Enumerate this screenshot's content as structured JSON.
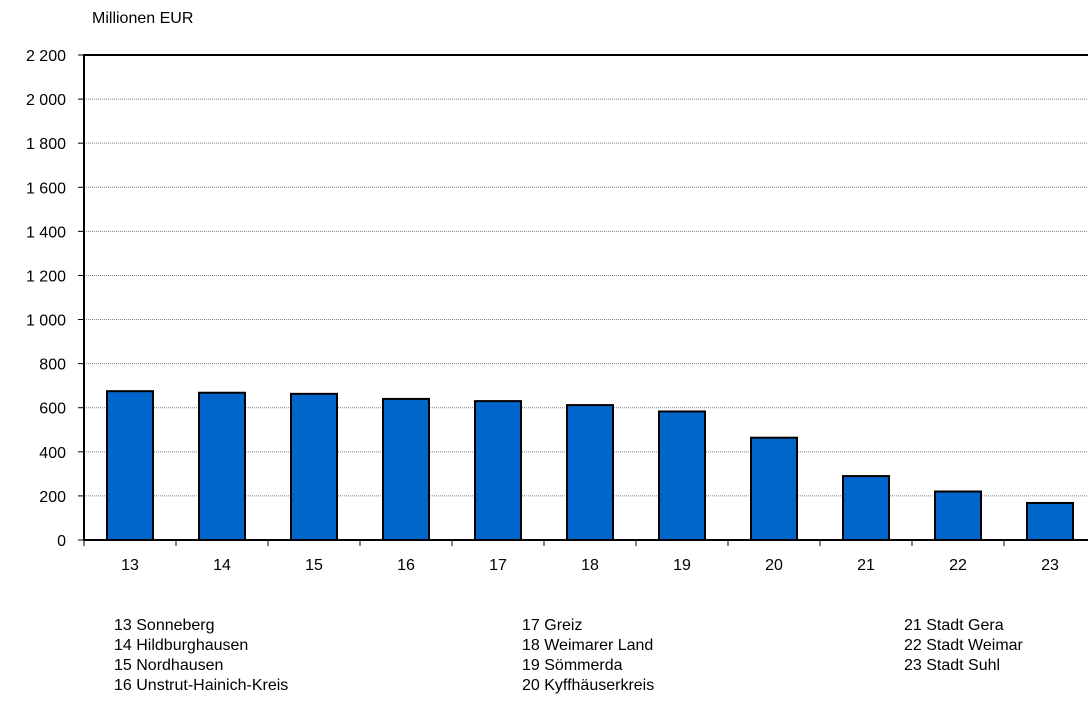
{
  "chart_data": {
    "type": "bar",
    "ylabel": "Millionen EUR",
    "categories": [
      "13",
      "14",
      "15",
      "16",
      "17",
      "18",
      "19",
      "20",
      "21",
      "22",
      "23"
    ],
    "values": [
      675,
      668,
      663,
      640,
      630,
      612,
      583,
      464,
      290,
      220,
      168
    ],
    "ylim": [
      0,
      2200
    ],
    "yticks": [
      0,
      200,
      400,
      600,
      800,
      1000,
      1200,
      1400,
      1600,
      1800,
      2000,
      2200
    ],
    "ytick_labels": [
      "0",
      "200",
      "400",
      "600",
      "800",
      "1 000",
      "1 200",
      "1 400",
      "1 600",
      "1 800",
      "2 000",
      "2 200"
    ],
    "grid": true,
    "bar_color": "#0066cc",
    "legend_columns": [
      [
        "13 Sonneberg",
        "14 Hildburghausen",
        "15 Nordhausen",
        "16 Unstrut-Hainich-Kreis"
      ],
      [
        "17 Greiz",
        "18 Weimarer Land",
        "19 Sömmerda",
        "20 Kyffhäuserkreis"
      ],
      [
        "21 Stadt Gera",
        "22 Stadt Weimar",
        "23 Stadt Suhl"
      ]
    ]
  }
}
